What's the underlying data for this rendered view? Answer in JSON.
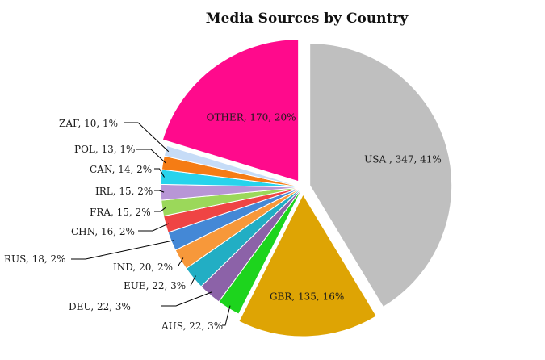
{
  "chart_data": {
    "type": "pie",
    "title": "Media Sources by Country",
    "slices": [
      {
        "label": "USA , 347, 41%",
        "name": "USA",
        "value": 347,
        "percent": 41,
        "color": "#bfbfbf",
        "exploded": true
      },
      {
        "label": "GBR, 135, 16%",
        "name": "GBR",
        "value": 135,
        "percent": 16,
        "color": "#dea404",
        "exploded": true
      },
      {
        "label": "AUS, 22, 3%",
        "name": "AUS",
        "value": 22,
        "percent": 3,
        "color": "#1dd41d",
        "exploded": false
      },
      {
        "label": "DEU, 22, 3%",
        "name": "DEU",
        "value": 22,
        "percent": 3,
        "color": "#8c62a8",
        "exploded": false
      },
      {
        "label": "EUE, 22, 3%",
        "name": "EUE",
        "value": 22,
        "percent": 3,
        "color": "#22aec4",
        "exploded": false
      },
      {
        "label": "IND, 20, 2%",
        "name": "IND",
        "value": 20,
        "percent": 2,
        "color": "#f7983a",
        "exploded": false
      },
      {
        "label": "RUS, 18, 2%",
        "name": "RUS",
        "value": 18,
        "percent": 2,
        "color": "#4488d6",
        "exploded": false
      },
      {
        "label": "CHN, 16, 2%",
        "name": "CHN",
        "value": 16,
        "percent": 2,
        "color": "#ef4444",
        "exploded": false
      },
      {
        "label": "FRA, 15, 2%",
        "name": "FRA",
        "value": 15,
        "percent": 2,
        "color": "#9bd85a",
        "exploded": false
      },
      {
        "label": "IRL, 15, 2%",
        "name": "IRL",
        "value": 15,
        "percent": 2,
        "color": "#b896d6",
        "exploded": false
      },
      {
        "label": "CAN, 14, 2%",
        "name": "CAN",
        "value": 14,
        "percent": 2,
        "color": "#27d3ec",
        "exploded": false
      },
      {
        "label": "POL, 13, 1%",
        "name": "POL",
        "value": 13,
        "percent": 1,
        "color": "#f57c14",
        "exploded": false
      },
      {
        "label": "ZAF, 10, 1%",
        "name": "ZAF",
        "value": 10,
        "percent": 1,
        "color": "#c6dcf7",
        "exploded": false
      },
      {
        "label": "OTHER, 170, 20%",
        "name": "OTHER",
        "value": 170,
        "percent": 20,
        "color": "#ff0a8c",
        "exploded": true
      }
    ]
  }
}
